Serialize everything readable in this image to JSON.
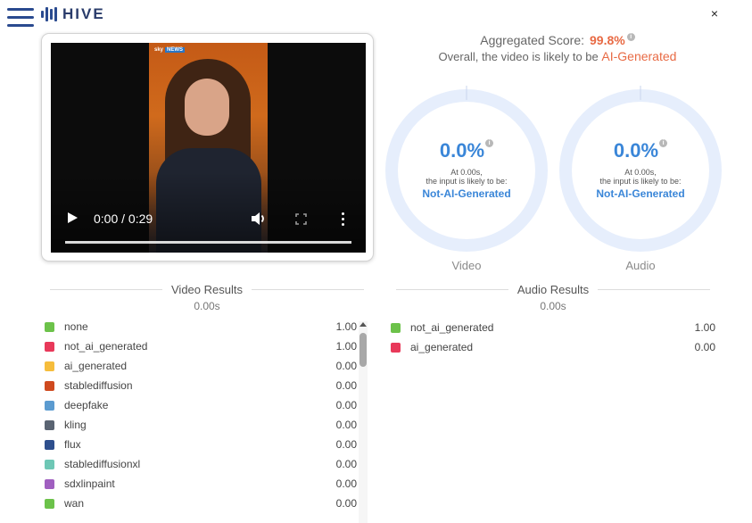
{
  "header": {
    "logo_text": "HIVE",
    "close_glyph": "×"
  },
  "player": {
    "time_display": "0:00 / 0:29",
    "icons": [
      "play-icon",
      "volume-icon",
      "fullscreen-icon",
      "more-options-icon"
    ],
    "watermark_sky": "sky",
    "watermark_news": "NEWS"
  },
  "aggregate": {
    "label": "Aggregated Score:",
    "score": "99.8%",
    "summary": "Overall, the video is likely to be",
    "verdict": "AI-Generated",
    "score_color": "#e86a44"
  },
  "gauges": [
    {
      "value": "0.0%",
      "line1": "At 0.00s,",
      "line2": "the input is likely to be:",
      "verdict": "Not-AI-Generated",
      "label": "Video"
    },
    {
      "value": "0.0%",
      "line1": "At 0.00s,",
      "line2": "the input is likely to be:",
      "verdict": "Not-AI-Generated",
      "label": "Audio"
    }
  ],
  "gauge_color": "#3a86d8",
  "gauge_ring_color": "#e6eefc",
  "video_results": {
    "title": "Video Results",
    "time": "0.00s",
    "rows": [
      {
        "label": "none",
        "value": "1.00",
        "color": "#6cc24a"
      },
      {
        "label": "not_ai_generated",
        "value": "1.00",
        "color": "#e8395a"
      },
      {
        "label": "ai_generated",
        "value": "0.00",
        "color": "#f6bd3c"
      },
      {
        "label": "stablediffusion",
        "value": "0.00",
        "color": "#cf4a1f"
      },
      {
        "label": "deepfake",
        "value": "0.00",
        "color": "#5b9bd0"
      },
      {
        "label": "kling",
        "value": "0.00",
        "color": "#5a6472"
      },
      {
        "label": "flux",
        "value": "0.00",
        "color": "#2e4f8d"
      },
      {
        "label": "stablediffusionxl",
        "value": "0.00",
        "color": "#6ec7b5"
      },
      {
        "label": "sdxlinpaint",
        "value": "0.00",
        "color": "#a05fc0"
      },
      {
        "label": "wan",
        "value": "0.00",
        "color": "#6cc24a"
      }
    ]
  },
  "audio_results": {
    "title": "Audio Results",
    "time": "0.00s",
    "rows": [
      {
        "label": "not_ai_generated",
        "value": "1.00",
        "color": "#6cc24a"
      },
      {
        "label": "ai_generated",
        "value": "0.00",
        "color": "#e8395a"
      }
    ]
  }
}
